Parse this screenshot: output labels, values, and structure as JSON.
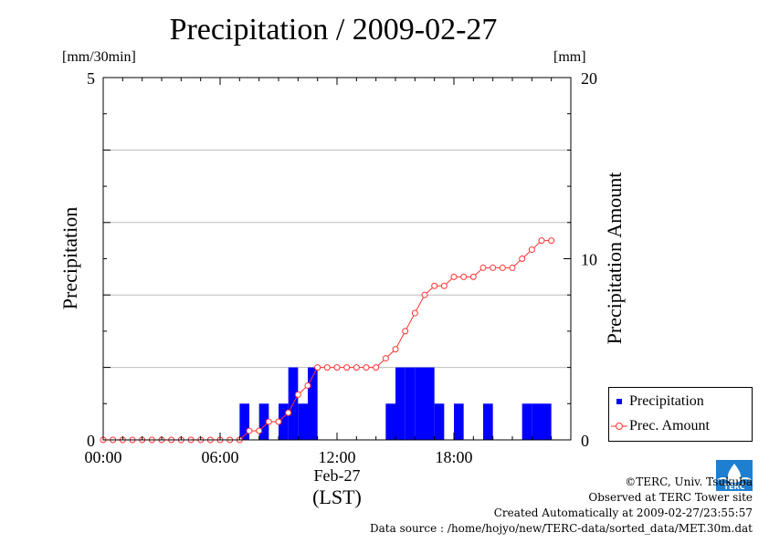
{
  "title": "Precipitation / 2009-02-27",
  "left_unit": "[mm/30min]",
  "right_unit": "[mm]",
  "legend": {
    "bar_label": "Precipitation",
    "line_label": "Prec. Amount"
  },
  "footer": {
    "copyright": "©TERC, Univ. Tsukuba",
    "observed": "Observed at TERC Tower site",
    "created": "Created Automatically at 2009-02-27/23:55:57",
    "source": "Data source : /home/hojyo/new/TERC-data/sorted_data/MET.30m.dat"
  },
  "logo_text": "TERC",
  "colors": {
    "bars": "#0000ff",
    "line": "#ff3333",
    "grid": "#bbbbbb"
  },
  "chart_data": {
    "type": "bar",
    "title": "Precipitation / 2009-02-27",
    "xlabel": "(LST)",
    "date_label": "Feb-27",
    "ylabel": "Precipitation",
    "y2label": "Precipitation Amount",
    "x_ticks": [
      "00:00",
      "06:00",
      "12:00",
      "18:00"
    ],
    "x_tick_hours": [
      0,
      6,
      12,
      18
    ],
    "xlim": [
      0,
      24
    ],
    "ylim": [
      0,
      5
    ],
    "y_ticks": [
      0,
      5
    ],
    "y2lim": [
      0,
      20
    ],
    "y2_ticks": [
      0,
      10,
      20
    ],
    "y_grid_lines": [
      1,
      2,
      3,
      4
    ],
    "bar_width_hours": 0.5,
    "series": [
      {
        "name": "Precipitation",
        "kind": "bar",
        "x_hours": [
          7.0,
          8.0,
          9.0,
          9.5,
          10.0,
          10.5,
          14.5,
          15.0,
          15.5,
          16.0,
          16.5,
          17.0,
          18.0,
          19.5,
          21.5,
          22.0,
          22.5
        ],
        "values": [
          0.5,
          0.5,
          0.5,
          1.0,
          0.5,
          1.0,
          0.5,
          1.0,
          1.0,
          1.0,
          1.0,
          0.5,
          0.5,
          0.5,
          0.5,
          0.5,
          0.5
        ]
      },
      {
        "name": "Prec. Amount",
        "kind": "line",
        "x_hours": [
          0,
          0.5,
          1.0,
          1.5,
          2.0,
          2.5,
          3.0,
          3.5,
          4.0,
          4.5,
          5.0,
          5.5,
          6.0,
          6.5,
          7.0,
          7.5,
          8.0,
          8.5,
          9.0,
          9.5,
          10.0,
          10.5,
          11.0,
          11.5,
          12.0,
          12.5,
          13.0,
          13.5,
          14.0,
          14.5,
          15.0,
          15.5,
          16.0,
          16.5,
          17.0,
          17.5,
          18.0,
          18.5,
          19.0,
          19.5,
          20.0,
          20.5,
          21.0,
          21.5,
          22.0,
          22.5,
          23.0
        ],
        "values": [
          0,
          0,
          0,
          0,
          0,
          0,
          0,
          0,
          0,
          0,
          0,
          0,
          0,
          0,
          0,
          0.5,
          0.5,
          1.0,
          1.0,
          1.5,
          2.5,
          3.0,
          4.0,
          4.0,
          4.0,
          4.0,
          4.0,
          4.0,
          4.0,
          4.5,
          5.0,
          6.0,
          7.0,
          8.0,
          8.5,
          8.5,
          9.0,
          9.0,
          9.0,
          9.5,
          9.5,
          9.5,
          9.5,
          10.0,
          10.5,
          11.0,
          11.0
        ]
      }
    ]
  }
}
